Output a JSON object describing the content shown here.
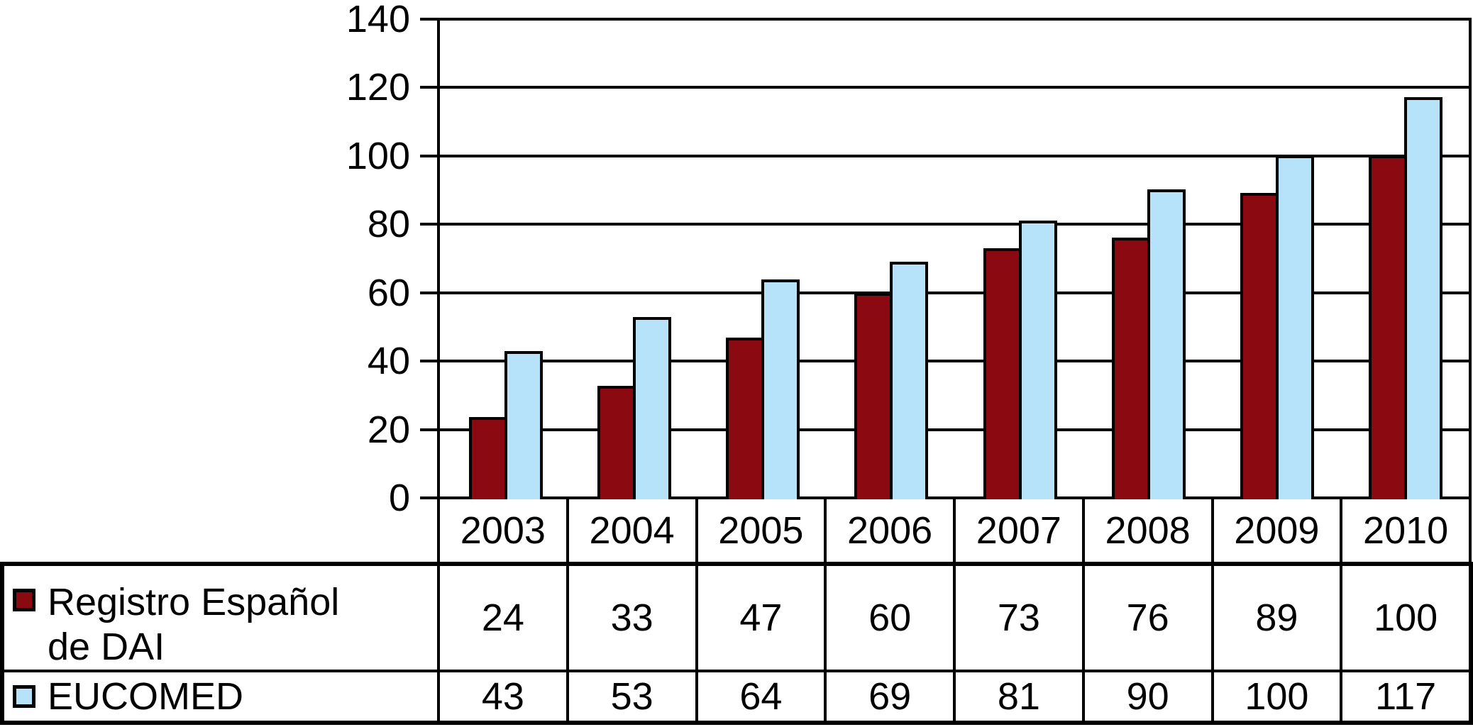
{
  "chart_data": {
    "type": "bar",
    "title": "",
    "categories": [
      "2003",
      "2004",
      "2005",
      "2006",
      "2007",
      "2008",
      "2009",
      "2010"
    ],
    "series": [
      {
        "name": "Registro Español de DAI",
        "label_line1": "Registro Español",
        "label_line2": "de DAI",
        "color": "#8B0A12",
        "values": [
          24,
          33,
          47,
          60,
          73,
          76,
          89,
          100
        ]
      },
      {
        "name": "EUCOMED",
        "label_line1": "EUCOMED",
        "label_line2": "",
        "color": "#B7E3FA",
        "values": [
          43,
          53,
          64,
          69,
          81,
          90,
          100,
          117
        ]
      }
    ],
    "ylim": [
      0,
      140
    ],
    "yticks": [
      140,
      120,
      100,
      80,
      60,
      40,
      20,
      0
    ],
    "grid": "horizontal",
    "gridline_color": "#000000",
    "axis_color": "#000000",
    "bar_outline_color": "#000000",
    "background": "#FFFFFF",
    "legend_position": "table-left"
  }
}
